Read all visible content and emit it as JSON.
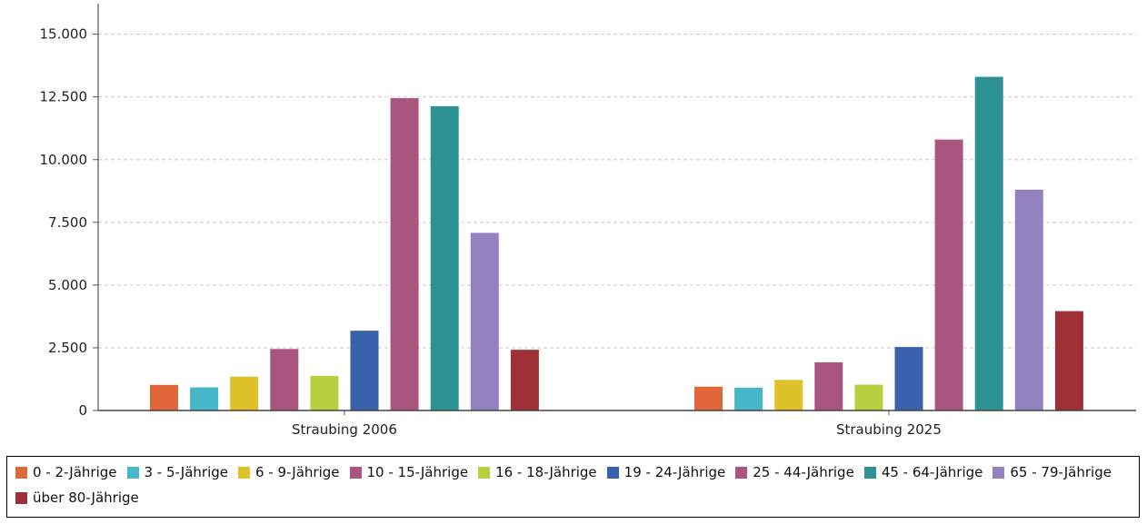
{
  "chart_data": {
    "type": "bar",
    "categories": [
      "Straubing 2006",
      "Straubing 2025"
    ],
    "series": [
      {
        "name": "0 - 2-Jährige",
        "color": "#e0673a",
        "values": [
          1020,
          950
        ]
      },
      {
        "name": "3 - 5-Jährige",
        "color": "#45b7c8",
        "values": [
          920,
          910
        ]
      },
      {
        "name": "6 - 9-Jährige",
        "color": "#dfc22a",
        "values": [
          1350,
          1220
        ]
      },
      {
        "name": "10 - 15-Jährige",
        "color": "#a9557f",
        "values": [
          2450,
          1920
        ]
      },
      {
        "name": "16 - 18-Jährige",
        "color": "#b8d040",
        "values": [
          1380,
          1030
        ]
      },
      {
        "name": "19 - 24-Jährige",
        "color": "#3a62ab",
        "values": [
          3180,
          2530
        ]
      },
      {
        "name": "25 - 44-Jährige",
        "color": "#a9557f",
        "values": [
          12450,
          10800
        ]
      },
      {
        "name": "45 - 64-Jährige",
        "color": "#2e9293",
        "values": [
          12130,
          13300
        ]
      },
      {
        "name": "65 - 79-Jährige",
        "color": "#9283c0",
        "values": [
          7080,
          8800
        ]
      },
      {
        "name": "über 80-Jährige",
        "color": "#9f3035",
        "values": [
          2420,
          3960
        ]
      }
    ],
    "yticks": [
      "0",
      "2.500",
      "5.000",
      "7.500",
      "10.000",
      "12.500",
      "15.000"
    ],
    "ylim": [
      0,
      16000
    ],
    "grid": true,
    "legend_position": "bottom"
  }
}
